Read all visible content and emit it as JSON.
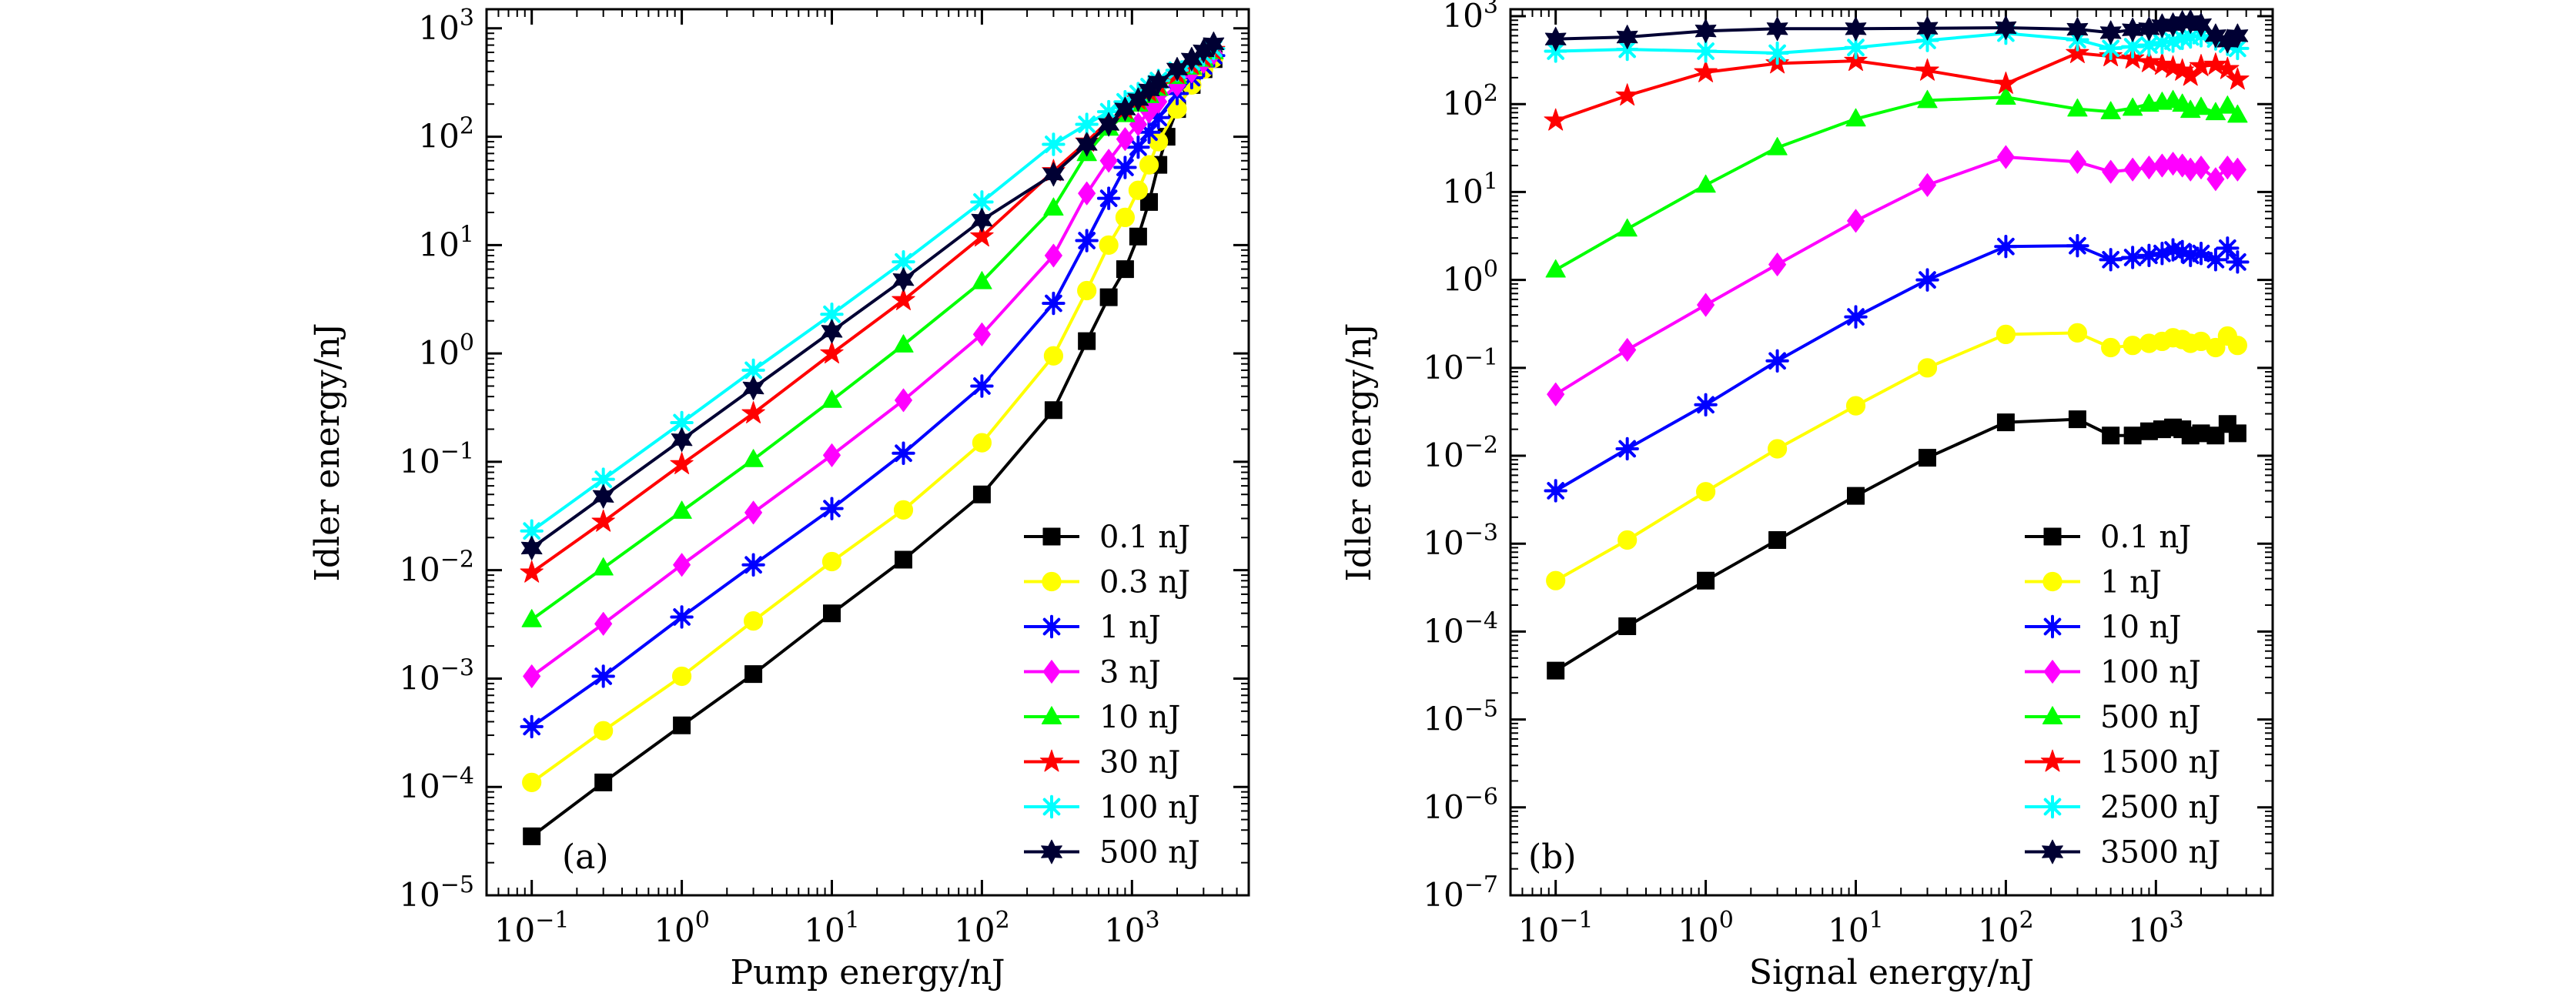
{
  "chart_data": [
    {
      "type": "line",
      "panel_label": "(a)",
      "xlabel": "Pump energy/nJ",
      "ylabel": "Idler energy/nJ",
      "xscale": "log",
      "yscale": "log",
      "xlim": [
        0.05,
        6000
      ],
      "ylim": [
        1e-05,
        1500
      ],
      "x_ticks": [
        {
          "value": 0.1,
          "mant": "10",
          "exp": "−1"
        },
        {
          "value": 1,
          "mant": "10",
          "exp": "0"
        },
        {
          "value": 10,
          "mant": "10",
          "exp": "1"
        },
        {
          "value": 100,
          "mant": "10",
          "exp": "2"
        },
        {
          "value": 1000,
          "mant": "10",
          "exp": "3"
        }
      ],
      "y_ticks": [
        {
          "value": 1e-05,
          "mant": "10",
          "exp": "−5"
        },
        {
          "value": 0.0001,
          "mant": "10",
          "exp": "−4"
        },
        {
          "value": 0.001,
          "mant": "10",
          "exp": "−3"
        },
        {
          "value": 0.01,
          "mant": "10",
          "exp": "−2"
        },
        {
          "value": 0.1,
          "mant": "10",
          "exp": "−1"
        },
        {
          "value": 1,
          "mant": "10",
          "exp": "0"
        },
        {
          "value": 10,
          "mant": "10",
          "exp": "1"
        },
        {
          "value": 100,
          "mant": "10",
          "exp": "2"
        },
        {
          "value": 1000,
          "mant": "10",
          "exp": "3"
        }
      ],
      "legend_position": "bottom-right",
      "series": [
        {
          "name": "0.1 nJ",
          "color": "#000000",
          "marker": "square",
          "x": [
            0.1,
            0.3,
            1,
            3,
            10,
            30,
            100,
            300,
            500,
            700,
            900,
            1100,
            1300,
            1500,
            1700,
            2000,
            2500,
            3000,
            3500
          ],
          "y": [
            3.5e-05,
            0.00011,
            0.00037,
            0.0011,
            0.004,
            0.0125,
            0.05,
            0.3,
            1.3,
            3.3,
            6,
            12,
            25,
            55,
            100,
            180,
            300,
            420,
            520
          ]
        },
        {
          "name": "0.3 nJ",
          "color": "#ffff00",
          "marker": "circle",
          "x": [
            0.1,
            0.3,
            1,
            3,
            10,
            30,
            100,
            300,
            500,
            700,
            900,
            1100,
            1300,
            1500,
            2000,
            2500,
            3000,
            3500
          ],
          "y": [
            0.00011,
            0.00033,
            0.00105,
            0.0034,
            0.012,
            0.036,
            0.15,
            0.95,
            3.8,
            10,
            18,
            32,
            55,
            90,
            180,
            300,
            420,
            530
          ]
        },
        {
          "name": "1 nJ",
          "color": "#0000ff",
          "marker": "asterisk",
          "x": [
            0.1,
            0.3,
            1,
            3,
            10,
            30,
            100,
            300,
            500,
            700,
            900,
            1100,
            1300,
            1500,
            2000,
            2500,
            3000,
            3500
          ],
          "y": [
            0.00036,
            0.00105,
            0.0037,
            0.0112,
            0.037,
            0.12,
            0.5,
            2.9,
            11,
            27,
            52,
            80,
            110,
            150,
            250,
            350,
            450,
            560
          ]
        },
        {
          "name": "3 nJ",
          "color": "#ff00ff",
          "marker": "diamond",
          "x": [
            0.1,
            0.3,
            1,
            3,
            10,
            30,
            100,
            300,
            500,
            700,
            900,
            1100,
            1300,
            1500,
            2000,
            2500,
            3000,
            3500
          ],
          "y": [
            0.00105,
            0.0032,
            0.0112,
            0.034,
            0.115,
            0.37,
            1.5,
            8,
            30,
            60,
            95,
            130,
            170,
            210,
            300,
            400,
            490,
            590
          ]
        },
        {
          "name": "10 nJ",
          "color": "#00ff00",
          "marker": "triangle",
          "x": [
            0.1,
            0.3,
            1,
            3,
            10,
            30,
            100,
            300,
            500,
            700,
            900,
            1100,
            1300,
            1500,
            2000,
            2500,
            3000,
            3500
          ],
          "y": [
            0.0035,
            0.0105,
            0.035,
            0.105,
            0.37,
            1.2,
            4.6,
            22,
            70,
            120,
            160,
            200,
            240,
            280,
            360,
            440,
            520,
            610
          ]
        },
        {
          "name": "30 nJ",
          "color": "#ff0000",
          "marker": "star",
          "x": [
            0.1,
            0.3,
            1,
            3,
            10,
            30,
            100,
            300,
            500,
            700,
            900,
            1100,
            1300,
            1500,
            2000,
            2500,
            3000,
            3500
          ],
          "y": [
            0.0095,
            0.028,
            0.095,
            0.28,
            1.0,
            3.1,
            12,
            48,
            90,
            140,
            180,
            220,
            260,
            300,
            380,
            460,
            540,
            630
          ]
        },
        {
          "name": "100 nJ",
          "color": "#00ffff",
          "marker": "asterisk",
          "x": [
            0.1,
            0.3,
            1,
            3,
            10,
            30,
            100,
            300,
            500,
            700,
            900,
            1100,
            1300,
            1500,
            2000,
            2500,
            3000,
            3500
          ],
          "y": [
            0.023,
            0.069,
            0.23,
            0.7,
            2.3,
            7,
            25,
            85,
            130,
            170,
            210,
            250,
            290,
            330,
            410,
            490,
            570,
            650
          ]
        },
        {
          "name": "500 nJ",
          "color": "#000033",
          "marker": "star6",
          "x": [
            0.1,
            0.3,
            1,
            3,
            10,
            30,
            100,
            300,
            500,
            700,
            900,
            1100,
            1300,
            1500,
            2000,
            2500,
            3000,
            3500
          ],
          "y": [
            0.016,
            0.048,
            0.16,
            0.48,
            1.6,
            4.8,
            17,
            45,
            85,
            130,
            180,
            220,
            270,
            320,
            420,
            520,
            620,
            720
          ]
        }
      ]
    },
    {
      "type": "line",
      "panel_label": "(b)",
      "xlabel": "Signal energy/nJ",
      "ylabel": "Idler energy/nJ",
      "xscale": "log",
      "yscale": "log",
      "xlim": [
        0.05,
        6000
      ],
      "ylim": [
        1e-07,
        1200
      ],
      "x_ticks": [
        {
          "value": 0.1,
          "mant": "10",
          "exp": "−1"
        },
        {
          "value": 1,
          "mant": "10",
          "exp": "0"
        },
        {
          "value": 10,
          "mant": "10",
          "exp": "1"
        },
        {
          "value": 100,
          "mant": "10",
          "exp": "2"
        },
        {
          "value": 1000,
          "mant": "10",
          "exp": "3"
        }
      ],
      "y_ticks": [
        {
          "value": 1e-07,
          "mant": "10",
          "exp": "−7"
        },
        {
          "value": 1e-06,
          "mant": "10",
          "exp": "−6"
        },
        {
          "value": 1e-05,
          "mant": "10",
          "exp": "−5"
        },
        {
          "value": 0.0001,
          "mant": "10",
          "exp": "−4"
        },
        {
          "value": 0.001,
          "mant": "10",
          "exp": "−3"
        },
        {
          "value": 0.01,
          "mant": "10",
          "exp": "−2"
        },
        {
          "value": 0.1,
          "mant": "10",
          "exp": "−1"
        },
        {
          "value": 1,
          "mant": "10",
          "exp": "0"
        },
        {
          "value": 10,
          "mant": "10",
          "exp": "1"
        },
        {
          "value": 100,
          "mant": "10",
          "exp": "2"
        },
        {
          "value": 1000,
          "mant": "10",
          "exp": "3"
        }
      ],
      "legend_position": "bottom-right",
      "series": [
        {
          "name": "0.1 nJ",
          "color": "#000000",
          "marker": "square",
          "x": [
            0.1,
            0.3,
            1,
            3,
            10,
            30,
            100,
            300,
            500,
            700,
            900,
            1100,
            1300,
            1500,
            1700,
            2000,
            2500,
            3000,
            3500
          ],
          "y": [
            3.6e-05,
            0.000115,
            0.00038,
            0.0011,
            0.0035,
            0.0095,
            0.024,
            0.026,
            0.017,
            0.017,
            0.019,
            0.02,
            0.021,
            0.02,
            0.017,
            0.018,
            0.017,
            0.023,
            0.018
          ]
        },
        {
          "name": "1 nJ",
          "color": "#ffff00",
          "marker": "circle",
          "x": [
            0.1,
            0.3,
            1,
            3,
            10,
            30,
            100,
            300,
            500,
            700,
            900,
            1100,
            1300,
            1500,
            1700,
            2000,
            2500,
            3000,
            3500
          ],
          "y": [
            0.00038,
            0.0011,
            0.0039,
            0.012,
            0.037,
            0.1,
            0.24,
            0.25,
            0.17,
            0.18,
            0.19,
            0.2,
            0.22,
            0.21,
            0.19,
            0.2,
            0.17,
            0.23,
            0.18
          ]
        },
        {
          "name": "10 nJ",
          "color": "#0000ff",
          "marker": "asterisk",
          "x": [
            0.1,
            0.3,
            1,
            3,
            10,
            30,
            100,
            300,
            500,
            700,
            900,
            1100,
            1300,
            1500,
            1700,
            2000,
            2500,
            3000,
            3500
          ],
          "y": [
            0.004,
            0.012,
            0.038,
            0.12,
            0.38,
            1.0,
            2.4,
            2.45,
            1.7,
            1.8,
            1.9,
            2.0,
            2.2,
            2.1,
            1.9,
            2.0,
            1.7,
            2.3,
            1.6
          ]
        },
        {
          "name": "100 nJ",
          "color": "#ff00ff",
          "marker": "diamond",
          "x": [
            0.1,
            0.3,
            1,
            3,
            10,
            30,
            100,
            300,
            500,
            700,
            900,
            1100,
            1300,
            1500,
            1700,
            2000,
            2500,
            3000,
            3500
          ],
          "y": [
            0.05,
            0.16,
            0.52,
            1.5,
            4.7,
            12,
            25,
            22,
            17,
            18,
            19,
            20,
            21,
            20,
            18,
            19,
            14,
            19,
            18
          ]
        },
        {
          "name": "500 nJ",
          "color": "#00ff00",
          "marker": "triangle",
          "x": [
            0.1,
            0.3,
            1,
            3,
            10,
            30,
            100,
            300,
            500,
            700,
            900,
            1100,
            1300,
            1500,
            1700,
            2000,
            2500,
            3000,
            3500
          ],
          "y": [
            1.3,
            3.8,
            12,
            32,
            68,
            110,
            120,
            88,
            82,
            90,
            100,
            105,
            110,
            100,
            85,
            92,
            80,
            95,
            75
          ]
        },
        {
          "name": "1500 nJ",
          "color": "#ff0000",
          "marker": "star",
          "x": [
            0.1,
            0.3,
            1,
            3,
            10,
            30,
            100,
            300,
            500,
            700,
            900,
            1100,
            1300,
            1500,
            1700,
            2000,
            2500,
            3000,
            3500
          ],
          "y": [
            65,
            125,
            230,
            290,
            310,
            240,
            170,
            380,
            350,
            330,
            300,
            280,
            260,
            240,
            210,
            270,
            280,
            250,
            190
          ]
        },
        {
          "name": "2500 nJ",
          "color": "#00ffff",
          "marker": "asterisk",
          "x": [
            0.1,
            0.3,
            1,
            3,
            10,
            30,
            100,
            300,
            500,
            700,
            900,
            1100,
            1300,
            1500,
            1700,
            2000,
            2500,
            3000,
            3500
          ],
          "y": [
            400,
            420,
            400,
            380,
            440,
            530,
            640,
            540,
            430,
            450,
            470,
            500,
            520,
            560,
            580,
            600,
            550,
            480,
            430
          ]
        },
        {
          "name": "3500 nJ",
          "color": "#000033",
          "marker": "star6",
          "x": [
            0.1,
            0.3,
            1,
            3,
            10,
            30,
            100,
            300,
            500,
            700,
            900,
            1100,
            1300,
            1500,
            1700,
            2000,
            2500,
            3000,
            3500
          ],
          "y": [
            550,
            580,
            680,
            720,
            720,
            730,
            740,
            710,
            650,
            700,
            720,
            780,
            800,
            850,
            870,
            800,
            600,
            520,
            600
          ]
        }
      ]
    }
  ]
}
